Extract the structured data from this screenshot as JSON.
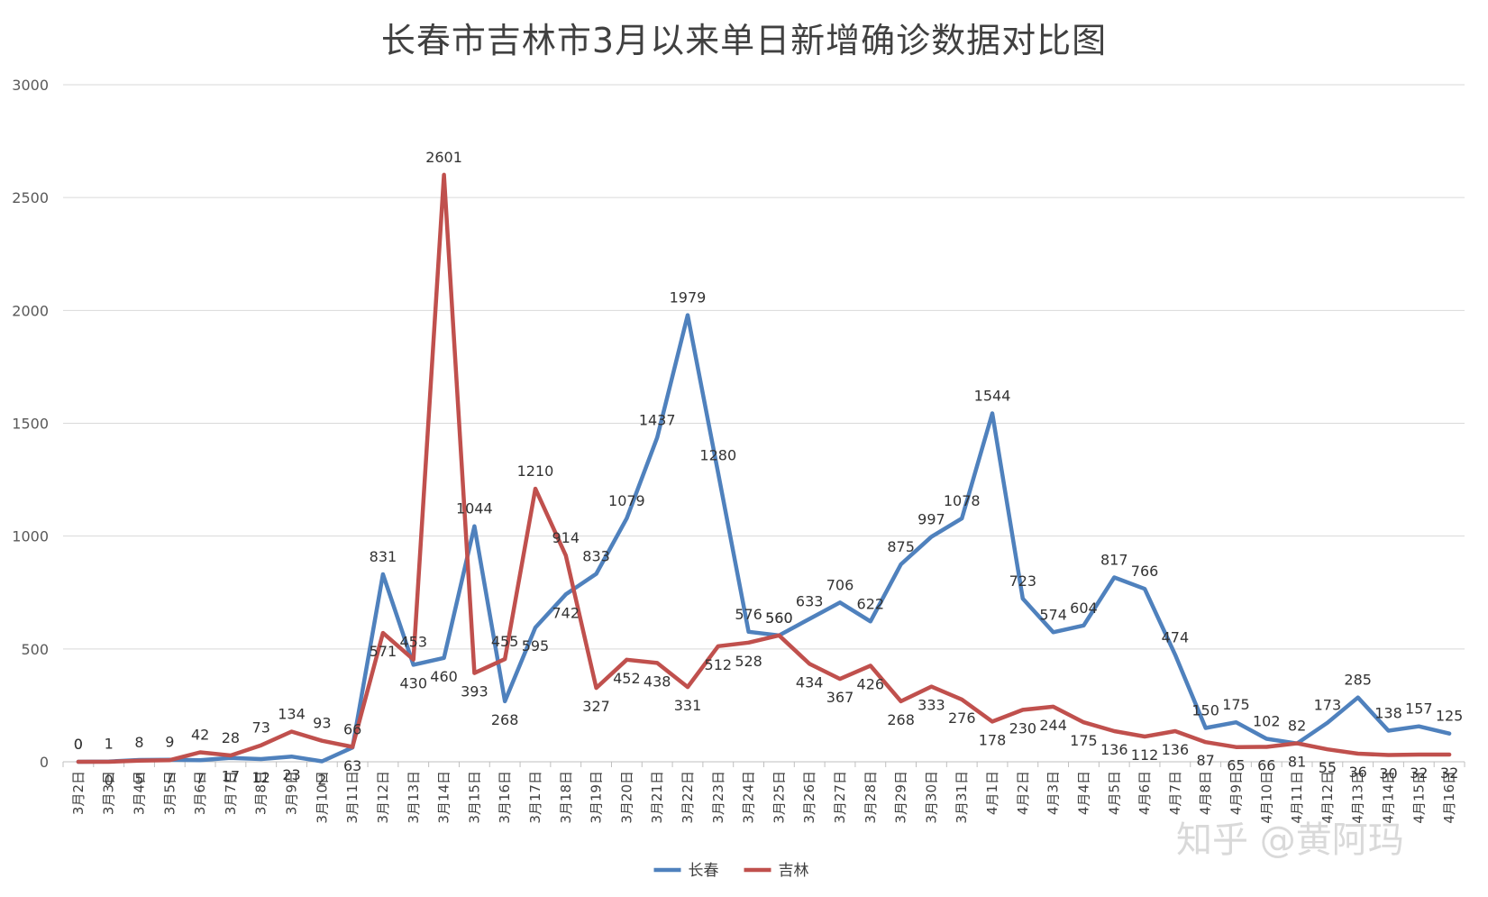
{
  "chart_data": {
    "type": "line",
    "title": "长春市吉林市3月以来单日新增确诊数据对比图",
    "xlabel": "",
    "ylabel": "",
    "ylim": [
      0,
      3000
    ],
    "yticks": [
      0,
      500,
      1000,
      1500,
      2000,
      2500,
      3000
    ],
    "grid": true,
    "legend_position": "bottom",
    "categories": [
      "3月2日",
      "3月3日",
      "3月4日",
      "3月5日",
      "3月6日",
      "3月7日",
      "3月8日",
      "3月9日",
      "3月10日",
      "3月11日",
      "3月12日",
      "3月13日",
      "3月14日",
      "3月15日",
      "3月16日",
      "3月17日",
      "3月18日",
      "3月19日",
      "3月20日",
      "3月21日",
      "3月22日",
      "3月23日",
      "3月24日",
      "3月25日",
      "3月26日",
      "3月27日",
      "3月28日",
      "3月29日",
      "3月30日",
      "3月31日",
      "4月1日",
      "4月2日",
      "4月3日",
      "4月4日",
      "4月5日",
      "4月6日",
      "4月7日",
      "4月8日",
      "4月9日",
      "4月10日",
      "4月11日",
      "4月12日",
      "4月13日",
      "4月14日",
      "4月15日",
      "4月16日"
    ],
    "series": [
      {
        "name": "长春",
        "color": "#4f81bd",
        "values": [
          0,
          1,
          8,
          9,
          7,
          17,
          12,
          23,
          2,
          63,
          831,
          430,
          460,
          1044,
          268,
          595,
          742,
          833,
          1079,
          1437,
          1979,
          1280,
          576,
          560,
          633,
          706,
          622,
          875,
          997,
          1078,
          1544,
          723,
          574,
          604,
          817,
          766,
          474,
          150,
          175,
          102,
          81,
          173,
          285,
          138,
          157,
          125
        ]
      },
      {
        "name": "吉林",
        "color": "#c0504d",
        "values": [
          0,
          0,
          5,
          7,
          42,
          28,
          73,
          134,
          93,
          66,
          571,
          453,
          2601,
          393,
          455,
          1210,
          914,
          327,
          452,
          438,
          331,
          512,
          528,
          560,
          434,
          367,
          426,
          268,
          333,
          276,
          178,
          230,
          244,
          175,
          136,
          112,
          136,
          87,
          65,
          66,
          82,
          55,
          36,
          30,
          32,
          32
        ]
      }
    ]
  },
  "watermark": "知乎 @黄阿玛"
}
